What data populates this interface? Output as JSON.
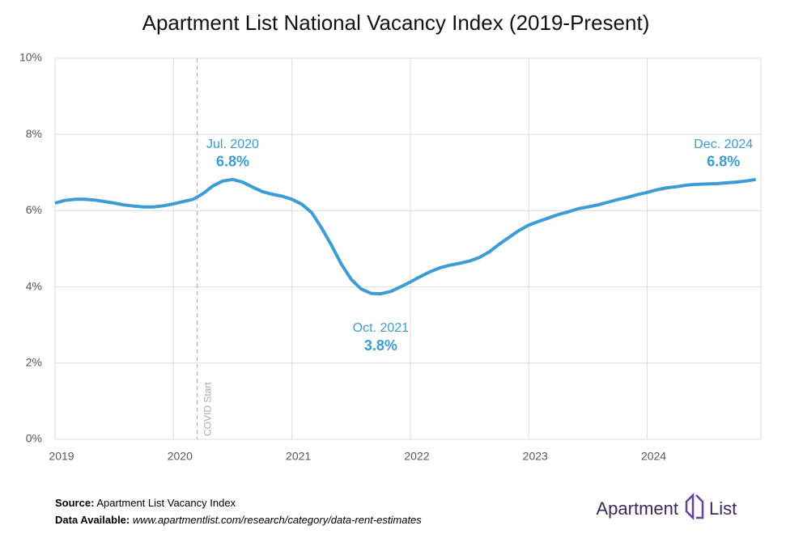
{
  "chart_data": {
    "type": "line",
    "title": "Apartment List National Vacancy Index (2019-Present)",
    "x": [
      2019.0,
      2019.083,
      2019.167,
      2019.25,
      2019.333,
      2019.417,
      2019.5,
      2019.583,
      2019.667,
      2019.75,
      2019.833,
      2019.917,
      2020.0,
      2020.083,
      2020.167,
      2020.25,
      2020.333,
      2020.417,
      2020.5,
      2020.583,
      2020.667,
      2020.75,
      2020.833,
      2020.917,
      2021.0,
      2021.083,
      2021.167,
      2021.25,
      2021.333,
      2021.417,
      2021.5,
      2021.583,
      2021.667,
      2021.75,
      2021.833,
      2021.917,
      2022.0,
      2022.083,
      2022.167,
      2022.25,
      2022.333,
      2022.417,
      2022.5,
      2022.583,
      2022.667,
      2022.75,
      2022.833,
      2022.917,
      2023.0,
      2023.083,
      2023.167,
      2023.25,
      2023.333,
      2023.417,
      2023.5,
      2023.583,
      2023.667,
      2023.75,
      2023.833,
      2023.917,
      2024.0,
      2024.083,
      2024.167,
      2024.25,
      2024.333,
      2024.417,
      2024.5,
      2024.583,
      2024.667,
      2024.75,
      2024.833,
      2024.917
    ],
    "series": [
      {
        "name": "National Vacancy Index",
        "color": "#3d9bd6",
        "values": [
          6.2,
          6.27,
          6.3,
          6.3,
          6.28,
          6.24,
          6.2,
          6.15,
          6.12,
          6.1,
          6.1,
          6.13,
          6.18,
          6.24,
          6.3,
          6.45,
          6.65,
          6.78,
          6.82,
          6.75,
          6.62,
          6.5,
          6.43,
          6.38,
          6.3,
          6.17,
          5.95,
          5.55,
          5.1,
          4.6,
          4.2,
          3.95,
          3.83,
          3.82,
          3.88,
          4.0,
          4.13,
          4.27,
          4.4,
          4.5,
          4.57,
          4.62,
          4.68,
          4.77,
          4.92,
          5.12,
          5.3,
          5.48,
          5.62,
          5.72,
          5.81,
          5.9,
          5.97,
          6.05,
          6.1,
          6.15,
          6.22,
          6.29,
          6.35,
          6.42,
          6.48,
          6.55,
          6.6,
          6.63,
          6.67,
          6.69,
          6.7,
          6.71,
          6.73,
          6.75,
          6.78,
          6.82
        ]
      }
    ],
    "xlim": [
      2019,
      2024.96
    ],
    "xticks": [
      2019,
      2020,
      2021,
      2022,
      2023,
      2024
    ],
    "ylim": [
      0,
      10
    ],
    "yticks": [
      {
        "value": 0,
        "label": "0%"
      },
      {
        "value": 2,
        "label": "2%"
      },
      {
        "value": 4,
        "label": "4%"
      },
      {
        "value": 6,
        "label": "6%"
      },
      {
        "value": 8,
        "label": "8%"
      },
      {
        "value": 10,
        "label": "10%"
      }
    ],
    "grid": true,
    "annotations": [
      {
        "text": "Jul. 2020",
        "x": 2020.5,
        "value": 6.8,
        "value_label": "6.8%",
        "position": "above"
      },
      {
        "text": "Oct. 2021",
        "x": 2021.75,
        "value": 3.8,
        "value_label": "3.8%",
        "position": "below"
      },
      {
        "text": "Dec. 2024",
        "x": 2024.917,
        "value": 6.8,
        "value_label": "6.8%",
        "position": "above-left"
      }
    ],
    "event_line": {
      "x": 2020.2,
      "label": "COVID Start"
    }
  },
  "footer": {
    "source_label": "Source:",
    "source": "Apartment List Vacancy Index",
    "data_label": "Data Available:",
    "data_url": "www.apartmentlist.com/research/category/data-rent-estimates"
  },
  "logo": {
    "left": "Apartment",
    "right": "List"
  }
}
